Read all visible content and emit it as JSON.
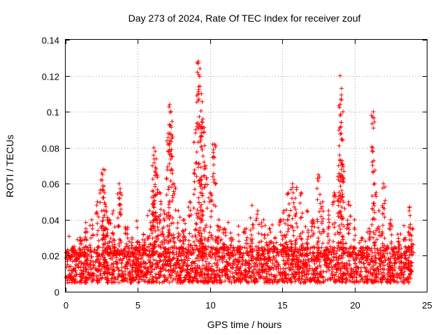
{
  "chart_data": {
    "type": "scatter",
    "title": "Day 273 of 2024, Rate Of TEC Index for receiver zouf",
    "xlabel": "GPS time / hours",
    "ylabel": "ROTI / TECUs",
    "xlim": [
      0,
      25
    ],
    "ylim": [
      0,
      0.14
    ],
    "xticks": [
      0,
      5,
      10,
      15,
      20,
      25
    ],
    "xtick_labels": [
      "0",
      "5",
      "10",
      "15",
      "20",
      "25"
    ],
    "yticks": [
      0,
      0.02,
      0.04,
      0.06,
      0.08,
      0.1,
      0.12,
      0.14
    ],
    "ytick_labels": [
      "0",
      "0.02",
      "0.04",
      "0.06",
      "0.08",
      "0.1",
      "0.12",
      "0.14"
    ],
    "grid": true,
    "marker": "plus",
    "series_color": "#ff0000",
    "series": [
      {
        "name": "ROTI",
        "x": [
          0.1,
          0.3,
          0.6,
          1.0,
          1.4,
          1.8,
          2.2,
          2.5,
          2.6,
          2.7,
          2.8,
          3.0,
          3.3,
          3.7,
          3.8,
          4.2,
          4.6,
          5.0,
          5.4,
          5.8,
          6.0,
          6.1,
          6.2,
          6.3,
          6.5,
          6.8,
          7.1,
          7.2,
          7.3,
          7.5,
          7.8,
          8.2,
          8.6,
          9.0,
          9.2,
          9.3,
          9.4,
          9.5,
          9.7,
          10.0,
          10.3,
          10.6,
          11.0,
          11.5,
          12.0,
          12.5,
          12.9,
          13.3,
          13.7,
          14.1,
          14.5,
          14.9,
          15.1,
          15.4,
          15.7,
          16.0,
          16.3,
          16.7,
          17.1,
          17.5,
          17.8,
          18.2,
          18.6,
          18.9,
          19.0,
          19.1,
          19.2,
          19.6,
          20.0,
          20.5,
          21.0,
          21.3,
          21.4,
          21.7,
          22.0,
          22.5,
          23.0,
          23.5,
          23.8,
          24.0
        ],
        "y": [
          0.022,
          0.018,
          0.025,
          0.03,
          0.035,
          0.04,
          0.05,
          0.066,
          0.068,
          0.055,
          0.045,
          0.04,
          0.045,
          0.06,
          0.055,
          0.035,
          0.03,
          0.028,
          0.032,
          0.045,
          0.07,
          0.08,
          0.078,
          0.065,
          0.055,
          0.045,
          0.088,
          0.104,
          0.1,
          0.06,
          0.045,
          0.04,
          0.05,
          0.09,
          0.128,
          0.124,
          0.11,
          0.096,
          0.07,
          0.055,
          0.082,
          0.04,
          0.035,
          0.03,
          0.028,
          0.035,
          0.048,
          0.045,
          0.04,
          0.035,
          0.03,
          0.04,
          0.045,
          0.055,
          0.06,
          0.058,
          0.055,
          0.045,
          0.04,
          0.065,
          0.05,
          0.045,
          0.055,
          0.07,
          0.12,
          0.113,
          0.1,
          0.05,
          0.04,
          0.03,
          0.035,
          0.1,
          0.06,
          0.045,
          0.06,
          0.04,
          0.032,
          0.03,
          0.047,
          0.035
        ]
      }
    ],
    "baseline_band": {
      "description_level": "dense band",
      "typical_min": 0.005,
      "typical_max": 0.025
    }
  }
}
